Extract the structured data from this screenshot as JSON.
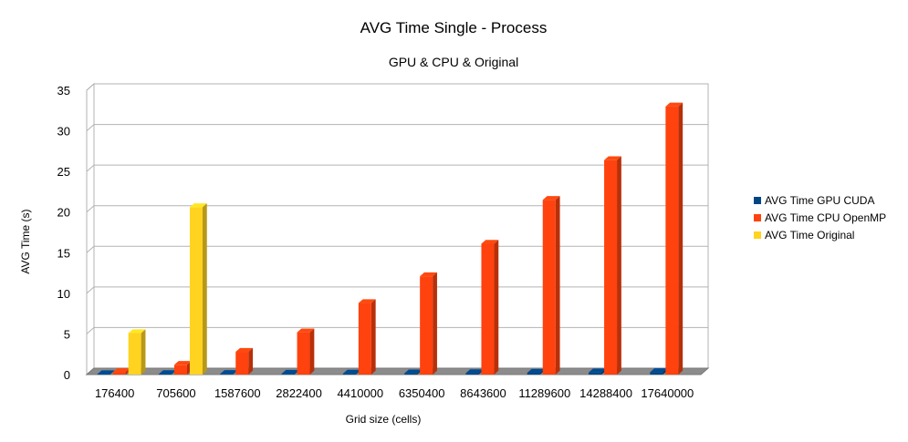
{
  "chart_data": {
    "type": "bar",
    "title": "AVG Time Single - Process",
    "subtitle": "GPU & CPU & Original",
    "xlabel": "Grid size (cells)",
    "ylabel": "AVG Time (s)",
    "ylim": [
      0,
      35
    ],
    "yticks": [
      "0",
      "5",
      "10",
      "15",
      "20",
      "25",
      "30",
      "35"
    ],
    "grid": true,
    "legend_position": "right",
    "categories": [
      "176400",
      "705600",
      "1587600",
      "2822400",
      "4410000",
      "6350400",
      "8643600",
      "11289600",
      "14288400",
      "17640000"
    ],
    "series": [
      {
        "name": "AVG Time GPU CUDA",
        "color": "#004586",
        "values": [
          0.05,
          0.06,
          0.08,
          0.1,
          0.12,
          0.15,
          0.18,
          0.22,
          0.26,
          0.3
        ]
      },
      {
        "name": "AVG Time CPU OpenMP",
        "color": "#ff420e",
        "values": [
          0.3,
          1.2,
          2.8,
          5.2,
          8.8,
          12.1,
          16.1,
          21.5,
          26.4,
          33.0
        ]
      },
      {
        "name": "AVG Time Original",
        "color": "#ffd320",
        "values": [
          5.1,
          20.6,
          null,
          null,
          null,
          null,
          null,
          null,
          null,
          null
        ]
      }
    ]
  }
}
